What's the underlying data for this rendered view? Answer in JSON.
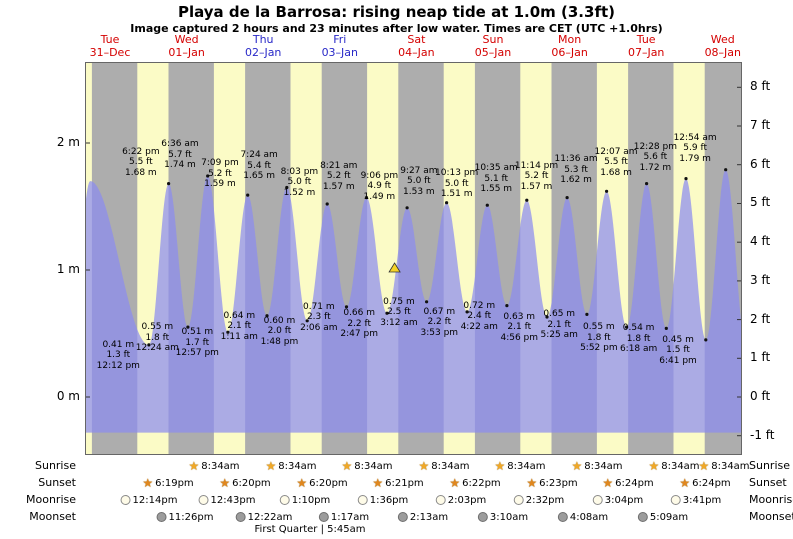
{
  "header": {
    "title": "Playa de la Barrosa: rising  neap tide at 1.0m (3.3ft)",
    "subtitle": "Image captured 2 hours and 23 minutes after low water. Times are CET (UTC +1.0hrs)"
  },
  "axes": {
    "left": [
      {
        "label": "2 m",
        "m": 2
      },
      {
        "label": "1 m",
        "m": 1
      },
      {
        "label": "0 m",
        "m": 0
      }
    ],
    "right": [
      {
        "label": "8 ft",
        "ft": 8
      },
      {
        "label": "7 ft",
        "ft": 7
      },
      {
        "label": "6 ft",
        "ft": 6
      },
      {
        "label": "5 ft",
        "ft": 5
      },
      {
        "label": "4 ft",
        "ft": 4
      },
      {
        "label": "3 ft",
        "ft": 3
      },
      {
        "label": "2 ft",
        "ft": 2
      },
      {
        "label": "1 ft",
        "ft": 1
      },
      {
        "label": "0 ft",
        "ft": 0
      },
      {
        "label": "-1 ft",
        "ft": -1
      }
    ]
  },
  "chart_data": {
    "type": "area",
    "title": "Playa de la Barrosa: rising  neap tide at 1.0m (3.3ft)",
    "x_unit": "hours from 31-Dec 00:00 CET",
    "y_unit": "meters",
    "y_range_m": [
      -0.46,
      2.64
    ],
    "baseline_m": -0.28,
    "days": [
      {
        "dow": "Tue",
        "date": "31–Dec",
        "t": 0,
        "color": "#D40000"
      },
      {
        "dow": "Wed",
        "date": "01–Jan",
        "t": 24,
        "color": "#D40000"
      },
      {
        "dow": "Thu",
        "date": "02–Jan",
        "t": 48,
        "color": "#2929C8"
      },
      {
        "dow": "Fri",
        "date": "03–Jan",
        "t": 72,
        "color": "#2929C8"
      },
      {
        "dow": "Sat",
        "date": "04–Jan",
        "t": 96,
        "color": "#D40000"
      },
      {
        "dow": "Sun",
        "date": "05–Jan",
        "t": 120,
        "color": "#D40000"
      },
      {
        "dow": "Mon",
        "date": "06–Jan",
        "t": 144,
        "color": "#D40000"
      },
      {
        "dow": "Tue",
        "date": "07–Jan",
        "t": 168,
        "color": "#D40000"
      },
      {
        "dow": "Wed",
        "date": "08–Jan",
        "t": 192,
        "color": "#D40000"
      }
    ],
    "tide_events": [
      {
        "type": "low",
        "time": "12:12 pm",
        "height_ft_label": "1.3 ft",
        "height_m_label": "0.41 m",
        "t_hours": 12.2,
        "height_m": 0.41
      },
      {
        "type": "high",
        "time": "6:22 pm",
        "height_ft_label": "5.5 ft",
        "height_m_label": "1.68 m",
        "t_hours": 18.37,
        "height_m": 1.68
      },
      {
        "type": "low",
        "time": "12:24 am",
        "height_ft_label": "1.8 ft",
        "height_m_label": "0.55 m",
        "t_hours": 24.4,
        "height_m": 0.55
      },
      {
        "type": "high",
        "time": "6:36 am",
        "height_ft_label": "5.7 ft",
        "height_m_label": "1.74 m",
        "t_hours": 30.6,
        "height_m": 1.74
      },
      {
        "type": "low",
        "time": "12:57 pm",
        "height_ft_label": "1.7 ft",
        "height_m_label": "0.51 m",
        "t_hours": 36.95,
        "height_m": 0.51
      },
      {
        "type": "high",
        "time": "7:09 pm",
        "height_ft_label": "5.2 ft",
        "height_m_label": "1.59 m",
        "t_hours": 43.15,
        "height_m": 1.59
      },
      {
        "type": "low",
        "time": "1:11 am",
        "height_ft_label": "2.1 ft",
        "height_m_label": "0.64 m",
        "t_hours": 49.18,
        "height_m": 0.64
      },
      {
        "type": "high",
        "time": "7:24 am",
        "height_ft_label": "5.4 ft",
        "height_m_label": "1.65 m",
        "t_hours": 55.4,
        "height_m": 1.65
      },
      {
        "type": "low",
        "time": "1:48 pm",
        "height_ft_label": "2.0 ft",
        "height_m_label": "0.60 m",
        "t_hours": 61.8,
        "height_m": 0.6
      },
      {
        "type": "high",
        "time": "8:03 pm",
        "height_ft_label": "5.0 ft",
        "height_m_label": "1.52 m",
        "t_hours": 68.05,
        "height_m": 1.52
      },
      {
        "type": "low",
        "time": "2:06 am",
        "height_ft_label": "2.3 ft",
        "height_m_label": "0.71 m",
        "t_hours": 74.1,
        "height_m": 0.71
      },
      {
        "type": "high",
        "time": "8:21 am",
        "height_ft_label": "5.2 ft",
        "height_m_label": "1.57 m",
        "t_hours": 80.35,
        "height_m": 1.57
      },
      {
        "type": "low",
        "time": "2:47 pm",
        "height_ft_label": "2.2 ft",
        "height_m_label": "0.66 m",
        "t_hours": 86.78,
        "height_m": 0.66
      },
      {
        "type": "high",
        "time": "9:06 pm",
        "height_ft_label": "4.9 ft",
        "height_m_label": "1.49 m",
        "t_hours": 93.1,
        "height_m": 1.49
      },
      {
        "type": "low",
        "time": "3:12 am",
        "height_ft_label": "2.5 ft",
        "height_m_label": "0.75 m",
        "t_hours": 99.2,
        "height_m": 0.75
      },
      {
        "type": "high",
        "time": "9:27 am",
        "height_ft_label": "5.0 ft",
        "height_m_label": "1.53 m",
        "t_hours": 105.45,
        "height_m": 1.53
      },
      {
        "type": "low",
        "time": "3:53 pm",
        "height_ft_label": "2.2 ft",
        "height_m_label": "0.67 m",
        "t_hours": 111.88,
        "height_m": 0.67
      },
      {
        "type": "high",
        "time": "10:13 pm",
        "height_ft_label": "5.0 ft",
        "height_m_label": "1.51 m",
        "t_hours": 118.22,
        "height_m": 1.51
      },
      {
        "type": "low",
        "time": "4:22 am",
        "height_ft_label": "2.4 ft",
        "height_m_label": "0.72 m",
        "t_hours": 124.37,
        "height_m": 0.72
      },
      {
        "type": "high",
        "time": "10:35 am",
        "height_ft_label": "5.1 ft",
        "height_m_label": "1.55 m",
        "t_hours": 130.58,
        "height_m": 1.55
      },
      {
        "type": "low",
        "time": "4:56 pm",
        "height_ft_label": "2.1 ft",
        "height_m_label": "0.63 m",
        "t_hours": 136.93,
        "height_m": 0.63
      },
      {
        "type": "high",
        "time": "11:14 pm",
        "height_ft_label": "5.2 ft",
        "height_m_label": "1.57 m",
        "t_hours": 143.23,
        "height_m": 1.57
      },
      {
        "type": "low",
        "time": "5:25 am",
        "height_ft_label": "2.1 ft",
        "height_m_label": "0.65 m",
        "t_hours": 149.42,
        "height_m": 0.65
      },
      {
        "type": "high",
        "time": "11:36 am",
        "height_ft_label": "5.3 ft",
        "height_m_label": "1.62 m",
        "t_hours": 155.6,
        "height_m": 1.62
      },
      {
        "type": "low",
        "time": "5:52 pm",
        "height_ft_label": "1.8 ft",
        "height_m_label": "0.55 m",
        "t_hours": 161.87,
        "height_m": 0.55
      },
      {
        "type": "high",
        "time": "12:07 am",
        "height_ft_label": "5.5 ft",
        "height_m_label": "1.68 m",
        "t_hours": 168.12,
        "height_m": 1.68
      },
      {
        "type": "low",
        "time": "6:18 am",
        "height_ft_label": "1.8 ft",
        "height_m_label": "0.54 m",
        "t_hours": 174.3,
        "height_m": 0.54
      },
      {
        "type": "high",
        "time": "12:28 pm",
        "height_ft_label": "5.6 ft",
        "height_m_label": "1.72 m",
        "t_hours": 180.47,
        "height_m": 1.72
      },
      {
        "type": "low",
        "time": "6:41 pm",
        "height_ft_label": "1.5 ft",
        "height_m_label": "0.45 m",
        "t_hours": 186.68,
        "height_m": 0.45
      },
      {
        "type": "high",
        "time": "12:54 am",
        "height_ft_label": "5.9 ft",
        "height_m_label": "1.79 m",
        "t_hours": 192.9,
        "height_m": 1.79
      }
    ],
    "curve_padding_events": [
      {
        "t": -12.3,
        "h": 0.45
      },
      {
        "t": -6.2,
        "h": 1.7
      },
      {
        "t": 199.3,
        "h": 0.4
      }
    ],
    "current_marker": {
      "t_hours": 89.17,
      "height_m": 1.0
    },
    "night_band_hours": {
      "sunset": 18.33,
      "sunrise_next_day": 32.57
    },
    "colors": {
      "day_band": "#FBFBC6",
      "night_band": "#ADADAD",
      "tide_fill": "rgba(140,140,240,0.72)",
      "marker": "#F5D327"
    }
  },
  "almanac": {
    "rows": [
      {
        "label": "Sunrise",
        "icon": "sunrise-star",
        "icon_color": "#F0A828",
        "entries": [
          {
            "time": "8:34am",
            "t": 32.57
          },
          {
            "time": "8:34am",
            "t": 56.57
          },
          {
            "time": "8:34am",
            "t": 80.57
          },
          {
            "time": "8:34am",
            "t": 104.57
          },
          {
            "time": "8:34am",
            "t": 128.57
          },
          {
            "time": "8:34am",
            "t": 152.57
          },
          {
            "time": "8:34am",
            "t": 176.57
          },
          {
            "time": "8:34am",
            "t": 200.57
          }
        ]
      },
      {
        "label": "Sunset",
        "icon": "sunset-star",
        "icon_color": "#E0871E",
        "entries": [
          {
            "time": "6:19pm",
            "t": 18.32
          },
          {
            "time": "6:20pm",
            "t": 42.33
          },
          {
            "time": "6:20pm",
            "t": 66.33
          },
          {
            "time": "6:21pm",
            "t": 90.35
          },
          {
            "time": "6:22pm",
            "t": 114.37
          },
          {
            "time": "6:23pm",
            "t": 138.38
          },
          {
            "time": "6:24pm",
            "t": 162.4
          },
          {
            "time": "6:24pm",
            "t": 186.4
          }
        ]
      },
      {
        "label": "Moonrise",
        "icon": "moon-light",
        "icon_color": "#FEFBE8",
        "entries": [
          {
            "time": "12:14pm",
            "t": 12.23
          },
          {
            "time": "12:43pm",
            "t": 36.72
          },
          {
            "time": "1:10pm",
            "t": 61.17
          },
          {
            "time": "1:36pm",
            "t": 85.6
          },
          {
            "time": "2:03pm",
            "t": 110.05
          },
          {
            "time": "2:32pm",
            "t": 134.53
          },
          {
            "time": "3:04pm",
            "t": 159.07
          },
          {
            "time": "3:41pm",
            "t": 183.68
          }
        ]
      },
      {
        "label": "Moonset",
        "icon": "moon-dark",
        "icon_color": "#9C9C9C",
        "entries": [
          {
            "time": "11:26pm",
            "t": 23.43
          },
          {
            "time": "12:22am",
            "t": 48.37
          },
          {
            "time": "1:17am",
            "t": 73.28
          },
          {
            "time": "2:13am",
            "t": 98.22
          },
          {
            "time": "3:10am",
            "t": 123.17
          },
          {
            "time": "4:08am",
            "t": 148.13
          },
          {
            "time": "5:09am",
            "t": 173.15
          }
        ]
      }
    ],
    "footer": "First Quarter | 5:45am"
  }
}
